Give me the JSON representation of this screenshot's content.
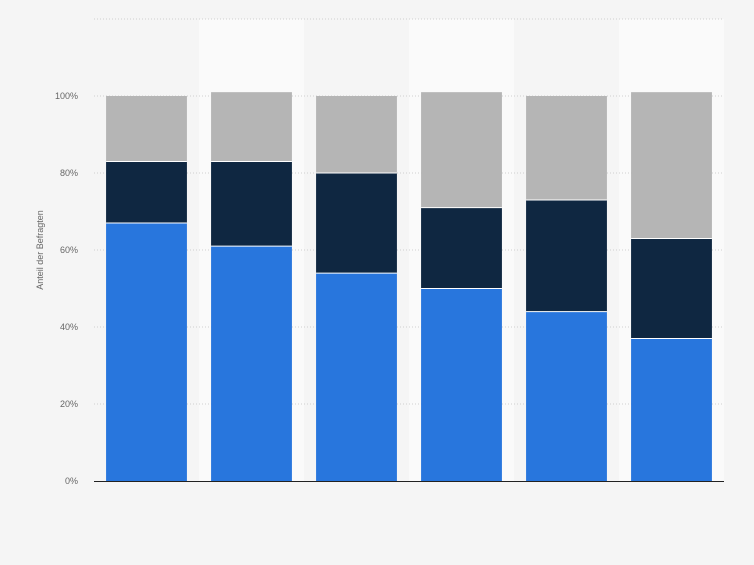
{
  "chart_data": {
    "type": "bar",
    "stacked": true,
    "categories": [
      "",
      "",
      "",
      "",
      "",
      ""
    ],
    "series": [
      {
        "name": "",
        "color": "#2876dd",
        "values": [
          67,
          61,
          54,
          50,
          44,
          37
        ]
      },
      {
        "name": "",
        "color": "#0f2741",
        "values": [
          16,
          22,
          26,
          21,
          29,
          26
        ]
      },
      {
        "name": "",
        "color": "#b5b5b5",
        "values": [
          17,
          18,
          20,
          30,
          27,
          38
        ]
      }
    ],
    "title": "",
    "xlabel": "",
    "ylabel": "Anteil der Befragten",
    "ylim": [
      0,
      120
    ],
    "yticks": [
      0,
      20,
      40,
      60,
      80,
      100
    ],
    "ytick_labels": [
      "0%",
      "20%",
      "40%",
      "60%",
      "80%",
      "100%"
    ],
    "grid": true,
    "legend": "none",
    "colors": {
      "background": "#f5f5f5",
      "band": "#fafafa",
      "grid": "#d0d0d0",
      "axis": "#222222",
      "separator": "#ffffff"
    }
  }
}
